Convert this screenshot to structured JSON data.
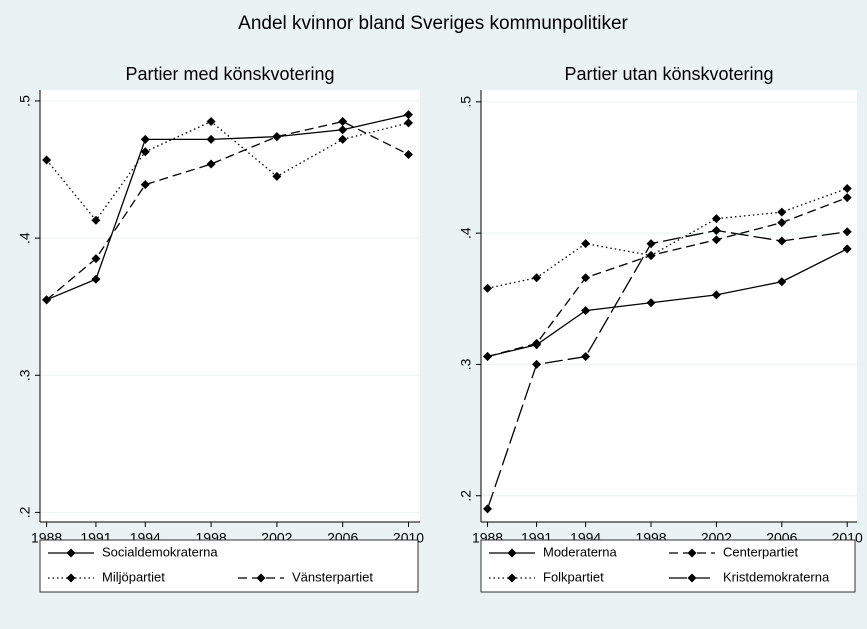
{
  "title": "Andel kvinnor bland Sveriges kommunpolitiker",
  "chart_data": [
    {
      "type": "line",
      "title": "Partier med könskvotering",
      "x": [
        1988,
        1991,
        1994,
        1998,
        2002,
        2006,
        2010
      ],
      "xlim": [
        1987.6,
        2010.7
      ],
      "xticks": [
        1988,
        1991,
        1994,
        1998,
        2002,
        2006,
        2010
      ],
      "ylim": [
        0.193,
        0.508
      ],
      "yticks": [
        {
          "value": 0.2,
          "label": ".2"
        },
        {
          "value": 0.3,
          "label": ".3"
        },
        {
          "value": 0.4,
          "label": ".4"
        },
        {
          "value": 0.5,
          "label": ".5"
        }
      ],
      "grid": true,
      "legend": "bottom",
      "series": [
        {
          "name": "Socialdemokraterna",
          "color": "#000000",
          "dash": "solid",
          "values": [
            0.355,
            0.37,
            0.472,
            0.472,
            0.474,
            0.479,
            0.49
          ]
        },
        {
          "name": "Miljöpartiet",
          "color": "#000000",
          "dash": "dot",
          "values": [
            0.457,
            0.413,
            0.463,
            0.485,
            0.445,
            0.472,
            0.484
          ]
        },
        {
          "name": "Vänsterpartiet",
          "color": "#000000",
          "dash": "dash",
          "values": [
            0.355,
            0.385,
            0.439,
            0.454,
            0.474,
            0.485,
            0.461
          ]
        }
      ]
    },
    {
      "type": "line",
      "title": "Partier utan könskvotering",
      "x": [
        1988,
        1991,
        1994,
        1998,
        2002,
        2006,
        2010
      ],
      "xlim": [
        1987.6,
        2010.6
      ],
      "xticks": [
        1988,
        1991,
        1994,
        1998,
        2002,
        2006,
        2010
      ],
      "ylim": [
        0.18,
        0.509
      ],
      "yticks": [
        {
          "value": 0.2,
          "label": ".2"
        },
        {
          "value": 0.3,
          "label": ".3"
        },
        {
          "value": 0.4,
          "label": ".4"
        },
        {
          "value": 0.5,
          "label": ".5"
        }
      ],
      "grid": true,
      "legend": "bottom",
      "series": [
        {
          "name": "Moderaterna",
          "color": "#000000",
          "dash": "solid",
          "values": [
            0.306,
            0.315,
            0.341,
            0.347,
            0.353,
            0.363,
            0.388
          ]
        },
        {
          "name": "Centerpartiet",
          "color": "#000000",
          "dash": "dash",
          "values": [
            0.306,
            0.316,
            0.366,
            0.383,
            0.395,
            0.408,
            0.427
          ]
        },
        {
          "name": "Folkpartiet",
          "color": "#000000",
          "dash": "dot",
          "values": [
            0.358,
            0.366,
            0.392,
            0.383,
            0.411,
            0.416,
            0.434
          ]
        },
        {
          "name": "Kristdemokraterna",
          "color": "#000000",
          "dash": "longdash",
          "values": [
            0.19,
            0.3,
            0.306,
            0.392,
            0.402,
            0.394,
            0.401
          ]
        }
      ]
    }
  ]
}
